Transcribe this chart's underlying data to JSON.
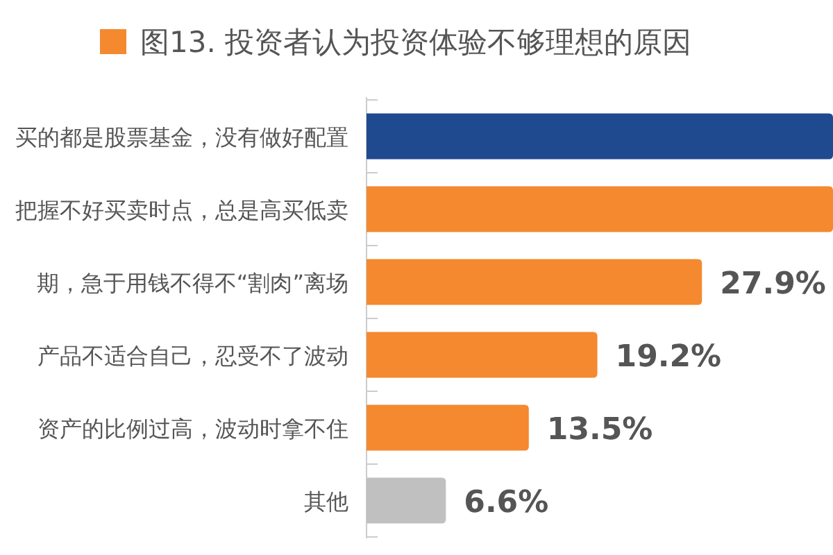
{
  "chart_data": {
    "type": "bar",
    "orientation": "horizontal",
    "title": "图13. 投资者认为投资体验不够理想的原因",
    "categories": [
      "买的都是股票基金，没有做好配置",
      "把握不好买卖时点，总是高买低卖",
      "期，急于用钱不得不“割肉”离场",
      "产品不适合自己，忍受不了波动",
      "资产的比例过高，波动时拿不住",
      "其他"
    ],
    "values": [
      38.8,
      38.8,
      27.9,
      19.2,
      13.5,
      6.6
    ],
    "colors": [
      "#204a8f",
      "#f4892f",
      "#f4892f",
      "#f4892f",
      "#f4892f",
      "#c0c0c0"
    ],
    "value_labels": [
      null,
      null,
      "27.9%",
      "19.2%",
      "13.5%",
      "6.6%"
    ],
    "xlim": [
      0,
      38.8
    ],
    "tick_labels": "y"
  }
}
